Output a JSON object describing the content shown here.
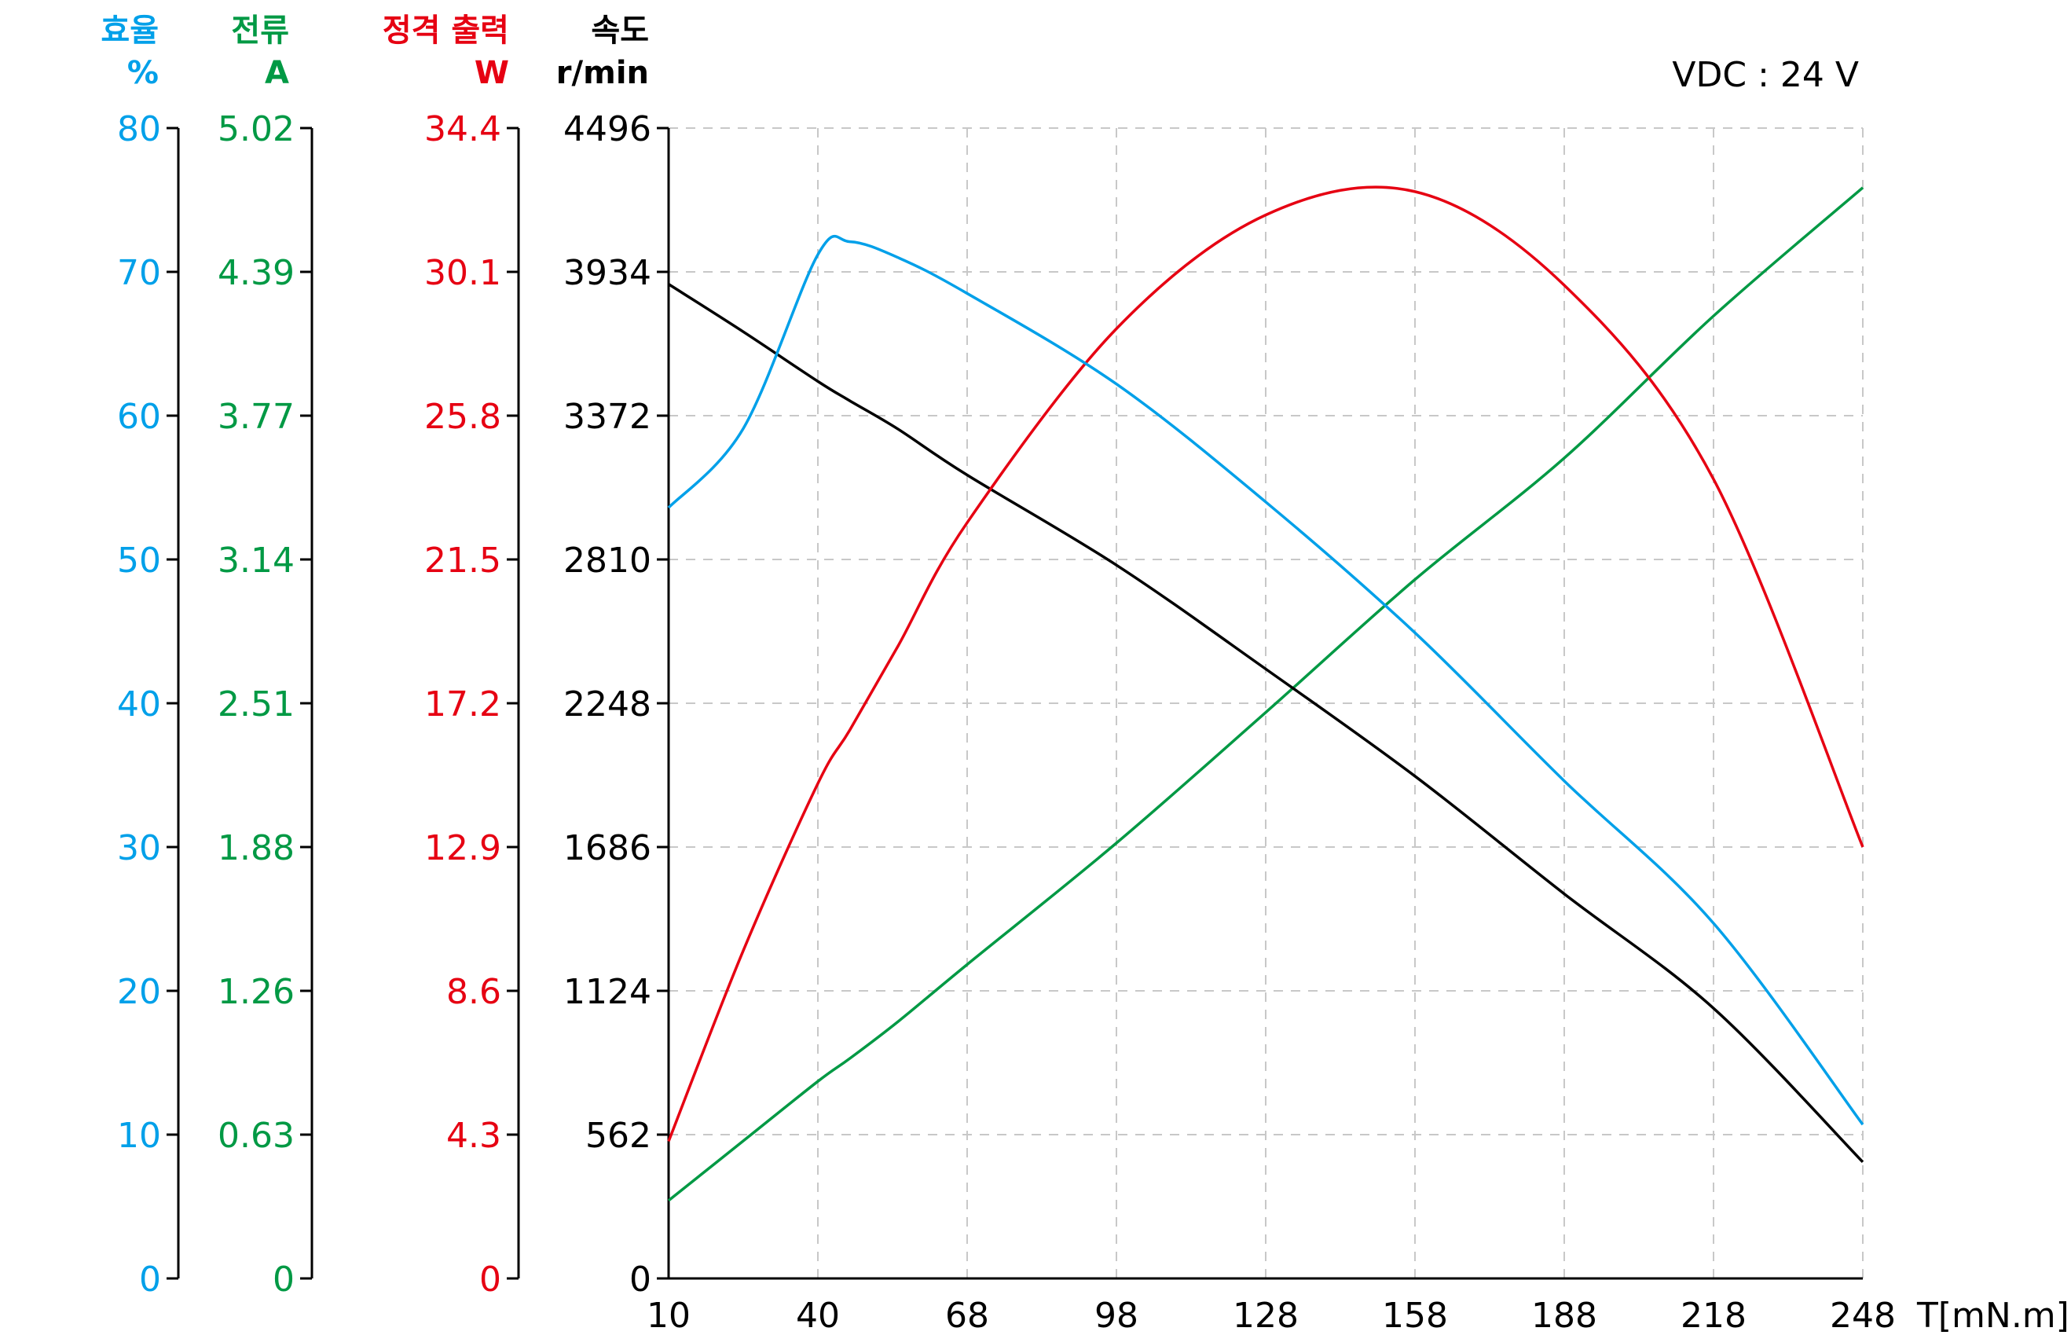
{
  "colors": {
    "efficiency": "#00A0E9",
    "current": "#009944",
    "power": "#E60012",
    "speed": "#000000",
    "grid": "#C8C8C8",
    "axis": "#000000"
  },
  "annotation": "VDC : 24 V",
  "axes": {
    "efficiency": {
      "title": "효율",
      "unit": "%",
      "ticks": [
        "0",
        "10",
        "20",
        "30",
        "40",
        "50",
        "60",
        "70",
        "80"
      ],
      "range": [
        0,
        80
      ]
    },
    "current": {
      "title": "전류",
      "unit": "A",
      "ticks": [
        "0",
        "0.63",
        "1.26",
        "1.88",
        "2.51",
        "3.14",
        "3.77",
        "4.39",
        "5.02"
      ],
      "range": [
        0,
        5.02
      ]
    },
    "power": {
      "title": "정격 출력",
      "unit": "W",
      "ticks": [
        "0",
        "4.3",
        "8.6",
        "12.9",
        "17.2",
        "21.5",
        "25.8",
        "30.1",
        "34.4"
      ],
      "range": [
        0,
        34.4
      ]
    },
    "speed": {
      "title": "속도",
      "unit": "r/min",
      "ticks": [
        "0",
        "562",
        "1124",
        "1686",
        "2248",
        "2810",
        "3372",
        "3934",
        "4496"
      ],
      "range": [
        0,
        4496
      ]
    },
    "x": {
      "label": "T[mN.m]",
      "ticks": [
        "10",
        "40",
        "68",
        "98",
        "128",
        "158",
        "188",
        "218",
        "248"
      ]
    }
  },
  "chart_data": {
    "type": "line",
    "title": "",
    "annotation": "VDC : 24 V",
    "xlabel": "T[mN.m]",
    "x_ticks": [
      10,
      40,
      68,
      98,
      128,
      158,
      188,
      218,
      248
    ],
    "grid": true,
    "legend": "axis titles above each y-axis (left side)",
    "y_axes": [
      {
        "name": "효율",
        "unit": "%",
        "ylim": [
          0,
          80
        ],
        "ticks": [
          0,
          10,
          20,
          30,
          40,
          50,
          60,
          70,
          80
        ]
      },
      {
        "name": "전류",
        "unit": "A",
        "ylim": [
          0,
          5.02
        ],
        "ticks": [
          0,
          0.63,
          1.26,
          1.88,
          2.51,
          3.14,
          3.77,
          4.39,
          5.02
        ]
      },
      {
        "name": "정격 출력",
        "unit": "W",
        "ylim": [
          0,
          34.4
        ],
        "ticks": [
          0,
          4.3,
          8.6,
          12.9,
          17.2,
          21.5,
          25.8,
          30.1,
          34.4
        ]
      },
      {
        "name": "속도",
        "unit": "r/min",
        "ylim": [
          0,
          4496
        ],
        "ticks": [
          0,
          562,
          1124,
          1686,
          2248,
          2810,
          3372,
          3934,
          4496
        ]
      }
    ],
    "x": [
      10,
      25,
      40,
      46,
      55,
      68,
      98,
      128,
      158,
      188,
      218,
      248
    ],
    "series": [
      {
        "name": "효율 (%)",
        "axis": "효율",
        "color": "#00A0E9",
        "values": [
          53.6,
          59.1,
          71.2,
          72.1,
          71.0,
          68.5,
          62.2,
          54.0,
          44.9,
          34.6,
          24.7,
          10.7
        ]
      },
      {
        "name": "전류 (A)",
        "axis": "전류",
        "color": "#009944",
        "values": [
          0.34,
          0.6,
          0.86,
          0.96,
          1.12,
          1.37,
          1.9,
          2.47,
          3.05,
          3.58,
          4.2,
          4.76
        ]
      },
      {
        "name": "정격 출력 (W)",
        "axis": "정격 출력",
        "color": "#E60012",
        "values": [
          4.1,
          9.8,
          14.8,
          16.4,
          18.9,
          22.6,
          28.4,
          31.8,
          32.5,
          29.7,
          23.9,
          12.9
        ]
      },
      {
        "name": "속도 (r/min)",
        "axis": "속도",
        "color": "#000000",
        "values": [
          3886,
          3700,
          3506,
          3430,
          3320,
          3140,
          2788,
          2382,
          1963,
          1503,
          1056,
          455
        ]
      }
    ]
  }
}
